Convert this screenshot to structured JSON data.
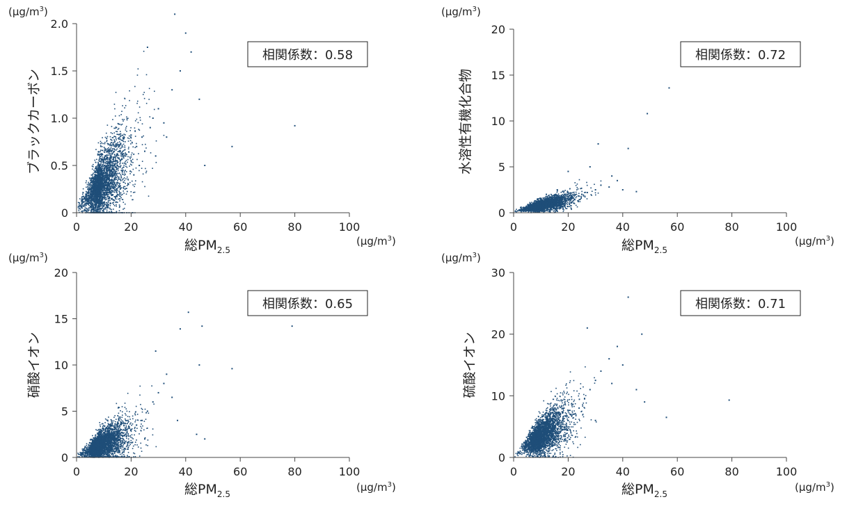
{
  "chart_data": [
    {
      "type": "scatter",
      "ylabel": "ブラックカーボン",
      "xlabel": "総PM2.5",
      "unit": "(μg/m3)",
      "xlim": [
        0,
        100
      ],
      "ylim": [
        0,
        2.0
      ],
      "xticks": [
        0,
        20,
        40,
        60,
        80,
        100
      ],
      "yticks": [
        0,
        0.5,
        1.0,
        1.5,
        2.0
      ],
      "ytick_labels": [
        "0",
        "0.5",
        "1.0",
        "1.5",
        "2.0"
      ],
      "correlation_label": "相関係数：0.58",
      "correlation": 0.58,
      "point_color": "#1f4e79",
      "points": [
        [
          3,
          0.08
        ],
        [
          5,
          0.15
        ],
        [
          7,
          0.2
        ],
        [
          8,
          0.3
        ],
        [
          10,
          0.25
        ],
        [
          12,
          0.35
        ],
        [
          14,
          0.4
        ],
        [
          15,
          0.5
        ],
        [
          17,
          0.45
        ],
        [
          18,
          0.6
        ],
        [
          20,
          0.55
        ],
        [
          22,
          0.7
        ],
        [
          24,
          0.8
        ],
        [
          25,
          0.65
        ],
        [
          27,
          0.9
        ],
        [
          28,
          1.0
        ],
        [
          30,
          1.1
        ],
        [
          32,
          0.95
        ],
        [
          35,
          1.3
        ],
        [
          38,
          1.5
        ],
        [
          40,
          1.9
        ],
        [
          42,
          1.7
        ],
        [
          45,
          1.2
        ],
        [
          47,
          0.5
        ],
        [
          57,
          0.7
        ],
        [
          80,
          0.92
        ],
        [
          36,
          2.1
        ],
        [
          26,
          1.75
        ],
        [
          9,
          0.1
        ],
        [
          11,
          0.2
        ],
        [
          13,
          0.15
        ],
        [
          6,
          0.05
        ],
        [
          19,
          0.3
        ],
        [
          21,
          0.4
        ],
        [
          23,
          0.5
        ],
        [
          16,
          0.25
        ],
        [
          29,
          0.6
        ],
        [
          33,
          0.8
        ],
        [
          4,
          0.12
        ],
        [
          2,
          0.05
        ]
      ]
    },
    {
      "type": "scatter",
      "ylabel": "水溶性有機化合物",
      "xlabel": "総PM2.5",
      "unit": "(μg/m3)",
      "xlim": [
        0,
        100
      ],
      "ylim": [
        0,
        20
      ],
      "xticks": [
        0,
        20,
        40,
        60,
        80,
        100
      ],
      "yticks": [
        0,
        5,
        10,
        15,
        20
      ],
      "ytick_labels": [
        "0",
        "5",
        "10",
        "15",
        "20"
      ],
      "correlation_label": "相関係数：0.72",
      "correlation": 0.72,
      "point_color": "#1f4e79",
      "points": [
        [
          2,
          0.3
        ],
        [
          4,
          0.4
        ],
        [
          6,
          0.5
        ],
        [
          8,
          0.6
        ],
        [
          10,
          0.8
        ],
        [
          12,
          0.9
        ],
        [
          14,
          1.0
        ],
        [
          15,
          1.2
        ],
        [
          17,
          1.1
        ],
        [
          18,
          1.4
        ],
        [
          20,
          1.5
        ],
        [
          22,
          1.6
        ],
        [
          24,
          1.8
        ],
        [
          25,
          2.0
        ],
        [
          27,
          2.2
        ],
        [
          30,
          2.5
        ],
        [
          32,
          3.0
        ],
        [
          35,
          2.8
        ],
        [
          38,
          3.5
        ],
        [
          40,
          2.5
        ],
        [
          42,
          7.0
        ],
        [
          45,
          2.3
        ],
        [
          49,
          10.8
        ],
        [
          57,
          13.6
        ],
        [
          31,
          7.5
        ],
        [
          20,
          4.5
        ],
        [
          28,
          5.0
        ],
        [
          36,
          4.0
        ],
        [
          12,
          2.0
        ],
        [
          16,
          2.5
        ]
      ]
    },
    {
      "type": "scatter",
      "ylabel": "硝酸イオン",
      "xlabel": "総PM2.5",
      "unit": "(μg/m3)",
      "xlim": [
        0,
        100
      ],
      "ylim": [
        0,
        20
      ],
      "xticks": [
        0,
        20,
        40,
        60,
        80,
        100
      ],
      "yticks": [
        0,
        5,
        10,
        15,
        20
      ],
      "ytick_labels": [
        "0",
        "5",
        "10",
        "15",
        "20"
      ],
      "correlation_label": "相関係数：0.65",
      "correlation": 0.65,
      "point_color": "#1f4e79",
      "points": [
        [
          2,
          0.3
        ],
        [
          4,
          0.5
        ],
        [
          6,
          0.7
        ],
        [
          8,
          0.9
        ],
        [
          10,
          1.2
        ],
        [
          12,
          1.5
        ],
        [
          14,
          1.8
        ],
        [
          16,
          2.0
        ],
        [
          18,
          2.5
        ],
        [
          20,
          3.0
        ],
        [
          22,
          3.5
        ],
        [
          24,
          4.0
        ],
        [
          26,
          5.0
        ],
        [
          28,
          6.0
        ],
        [
          30,
          7.0
        ],
        [
          32,
          8.0
        ],
        [
          35,
          6.5
        ],
        [
          38,
          13.9
        ],
        [
          41,
          15.7
        ],
        [
          45,
          10.0
        ],
        [
          46,
          14.2
        ],
        [
          57,
          9.6
        ],
        [
          79,
          14.2
        ],
        [
          29,
          11.5
        ],
        [
          33,
          9.0
        ],
        [
          37,
          4.0
        ],
        [
          44,
          2.5
        ],
        [
          47,
          2.0
        ],
        [
          25,
          2.0
        ],
        [
          15,
          1.0
        ]
      ]
    },
    {
      "type": "scatter",
      "ylabel": "硫酸イオン",
      "xlabel": "総PM2.5",
      "unit": "(μg/m3)",
      "xlim": [
        0,
        100
      ],
      "ylim": [
        0,
        30
      ],
      "xticks": [
        0,
        20,
        40,
        60,
        80,
        100
      ],
      "yticks": [
        0,
        10,
        20,
        30
      ],
      "ytick_labels": [
        "0",
        "10",
        "20",
        "30"
      ],
      "correlation_label": "相関係数：0.71",
      "correlation": 0.71,
      "point_color": "#1f4e79",
      "points": [
        [
          2,
          0.8
        ],
        [
          4,
          1.2
        ],
        [
          6,
          1.6
        ],
        [
          8,
          2.0
        ],
        [
          10,
          2.5
        ],
        [
          12,
          3.0
        ],
        [
          14,
          3.5
        ],
        [
          16,
          4.5
        ],
        [
          18,
          5.0
        ],
        [
          20,
          6.0
        ],
        [
          22,
          7.0
        ],
        [
          24,
          8.0
        ],
        [
          26,
          9.5
        ],
        [
          28,
          11.0
        ],
        [
          30,
          12.5
        ],
        [
          32,
          14.0
        ],
        [
          35,
          16.0
        ],
        [
          38,
          18.0
        ],
        [
          42,
          26.0
        ],
        [
          47,
          20.0
        ],
        [
          40,
          15.0
        ],
        [
          36,
          12.0
        ],
        [
          27,
          21.0
        ],
        [
          45,
          11.0
        ],
        [
          48,
          9.0
        ],
        [
          56,
          6.5
        ],
        [
          79,
          9.3
        ],
        [
          19,
          3.0
        ],
        [
          15,
          2.0
        ],
        [
          30,
          6.0
        ]
      ]
    }
  ]
}
